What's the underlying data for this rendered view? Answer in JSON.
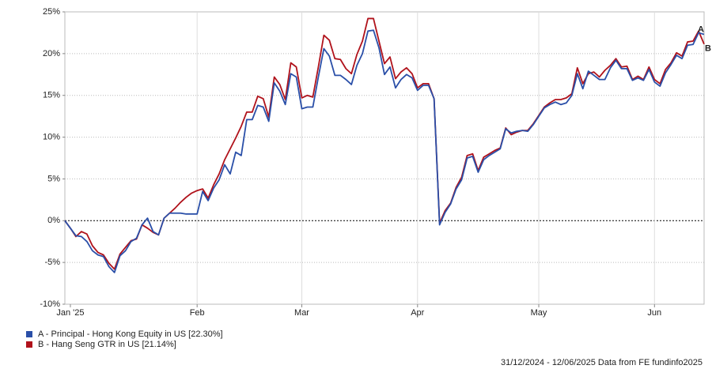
{
  "chart_data": {
    "type": "line",
    "categories": [
      null,
      "Jan '25",
      null,
      null,
      null,
      null,
      null,
      null,
      null,
      null,
      null,
      null,
      null,
      null,
      null,
      null,
      null,
      null,
      null,
      null,
      null,
      null,
      null,
      null,
      "Feb",
      null,
      null,
      null,
      null,
      null,
      null,
      null,
      null,
      null,
      null,
      null,
      null,
      null,
      null,
      null,
      null,
      null,
      null,
      "Mar",
      null,
      null,
      null,
      null,
      null,
      null,
      null,
      null,
      null,
      null,
      null,
      null,
      null,
      null,
      null,
      null,
      null,
      null,
      null,
      null,
      "Apr",
      null,
      null,
      null,
      null,
      null,
      null,
      null,
      null,
      null,
      null,
      null,
      null,
      null,
      null,
      null,
      null,
      null,
      null,
      null,
      null,
      null,
      "May",
      null,
      null,
      null,
      null,
      null,
      null,
      null,
      null,
      null,
      null,
      null,
      null,
      null,
      null,
      null,
      null,
      null,
      null,
      null,
      null,
      "Jun",
      null,
      null,
      null,
      null,
      null,
      null,
      null,
      null,
      null
    ],
    "series": [
      {
        "name": "A - Principal - Hong Kong Equity in US [22.30%]",
        "label": "A",
        "color": "#2a4fa8",
        "values": [
          0,
          -0.9,
          -1.8,
          -1.9,
          -2.5,
          -3.6,
          -4.1,
          -4.3,
          -5.5,
          -6.2,
          -4.2,
          -3.6,
          -2.5,
          -2.1,
          -0.5,
          0.3,
          -1.3,
          -1.7,
          0.3,
          0.9,
          0.9,
          0.9,
          0.8,
          0.8,
          0.8,
          3.5,
          2.4,
          3.9,
          4.9,
          6.7,
          5.6,
          8.2,
          7.8,
          12.1,
          12.1,
          13.8,
          13.6,
          11.9,
          16.5,
          15.5,
          13.9,
          17.6,
          17.2,
          13.4,
          13.6,
          13.6,
          17.2,
          20.6,
          19.7,
          17.4,
          17.4,
          16.9,
          16.3,
          18.6,
          20.0,
          22.7,
          22.8,
          20.7,
          17.5,
          18.4,
          15.9,
          16.9,
          17.5,
          17.1,
          15.6,
          16.2,
          16.2,
          14.6,
          -0.5,
          1.0,
          2.0,
          3.8,
          4.9,
          7.5,
          7.7,
          5.8,
          7.3,
          7.8,
          8.2,
          8.6,
          11.0,
          10.5,
          10.7,
          10.8,
          10.7,
          11.5,
          12.5,
          13.5,
          13.9,
          14.2,
          13.9,
          14.1,
          15.0,
          17.6,
          15.8,
          17.9,
          17.4,
          16.9,
          16.9,
          18.3,
          19.2,
          18.2,
          18.2,
          16.8,
          17.1,
          16.8,
          18.1,
          16.6,
          16.1,
          17.7,
          18.7,
          19.8,
          19.4,
          21.0,
          21.1,
          22.5,
          22.3
        ]
      },
      {
        "name": "B - Hang Seng GTR in US [21.14%]",
        "label": "B",
        "color": "#b0121b",
        "values": [
          0,
          -0.9,
          -1.9,
          -1.3,
          -1.6,
          -3.0,
          -3.8,
          -4.1,
          -5.1,
          -5.8,
          -4.0,
          -3.2,
          -2.4,
          -2.2,
          -0.5,
          -0.9,
          -1.4,
          -1.7,
          0.3,
          0.9,
          1.5,
          2.2,
          2.8,
          3.3,
          3.6,
          3.8,
          2.7,
          4.3,
          5.6,
          7.3,
          8.6,
          9.9,
          11.3,
          13.0,
          13.0,
          14.9,
          14.6,
          12.4,
          17.2,
          16.3,
          14.5,
          18.9,
          18.4,
          14.7,
          15.0,
          14.8,
          18.4,
          22.2,
          21.6,
          19.4,
          19.3,
          18.2,
          17.6,
          19.9,
          21.5,
          24.2,
          24.2,
          21.5,
          18.8,
          19.6,
          17.0,
          17.8,
          18.3,
          17.6,
          15.9,
          16.4,
          16.4,
          14.6,
          -0.3,
          1.2,
          2.1,
          4.0,
          5.2,
          7.8,
          8.0,
          6.0,
          7.6,
          8.0,
          8.4,
          8.7,
          11.1,
          10.3,
          10.6,
          10.8,
          10.8,
          11.6,
          12.6,
          13.6,
          14.1,
          14.5,
          14.5,
          14.7,
          15.2,
          18.3,
          16.4,
          17.6,
          17.8,
          17.2,
          18.0,
          18.6,
          19.4,
          18.4,
          18.5,
          16.9,
          17.3,
          16.9,
          18.4,
          16.9,
          16.4,
          18.1,
          18.9,
          20.1,
          19.7,
          21.4,
          21.5,
          22.7,
          21.14
        ]
      }
    ],
    "ylim": [
      -10,
      25
    ],
    "yticks": [
      {
        "value": -10,
        "label": "-10%"
      },
      {
        "value": -5,
        "label": "-5%"
      },
      {
        "value": 0,
        "label": "0%"
      },
      {
        "value": 5,
        "label": "5%"
      },
      {
        "value": 10,
        "label": "10%"
      },
      {
        "value": 15,
        "label": "15%"
      },
      {
        "value": 20,
        "label": "20%"
      },
      {
        "value": 25,
        "label": "25%"
      }
    ],
    "grid": true,
    "legend": "bottom-left",
    "source": "31/12/2024 - 12/06/2025 Data from FE fundinfo2025"
  }
}
